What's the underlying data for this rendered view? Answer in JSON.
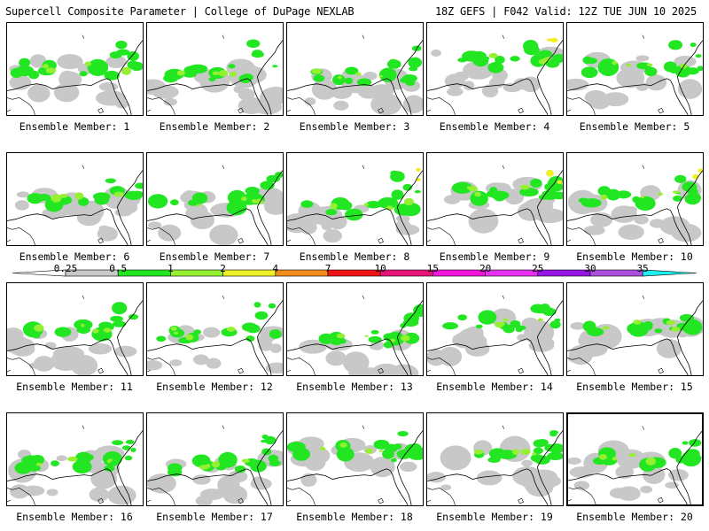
{
  "header": {
    "title_left": "Supercell Composite Parameter | College of DuPage NEXLAB",
    "title_right": "18Z GEFS | F042 Valid: 12Z TUE JUN 10 2025"
  },
  "member_prefix": "Ensemble Member: ",
  "members": [
    {
      "id": 1,
      "label": "Ensemble Member: 1"
    },
    {
      "id": 2,
      "label": "Ensemble Member: 2"
    },
    {
      "id": 3,
      "label": "Ensemble Member: 3"
    },
    {
      "id": 4,
      "label": "Ensemble Member: 4"
    },
    {
      "id": 5,
      "label": "Ensemble Member: 5"
    },
    {
      "id": 6,
      "label": "Ensemble Member: 6"
    },
    {
      "id": 7,
      "label": "Ensemble Member: 7"
    },
    {
      "id": 8,
      "label": "Ensemble Member: 8"
    },
    {
      "id": 9,
      "label": "Ensemble Member: 9"
    },
    {
      "id": 10,
      "label": "Ensemble Member: 10"
    },
    {
      "id": 11,
      "label": "Ensemble Member: 11"
    },
    {
      "id": 12,
      "label": "Ensemble Member: 12"
    },
    {
      "id": 13,
      "label": "Ensemble Member: 13"
    },
    {
      "id": 14,
      "label": "Ensemble Member: 14"
    },
    {
      "id": 15,
      "label": "Ensemble Member: 15"
    },
    {
      "id": 16,
      "label": "Ensemble Member: 16"
    },
    {
      "id": 17,
      "label": "Ensemble Member: 17"
    },
    {
      "id": 18,
      "label": "Ensemble Member: 18"
    },
    {
      "id": 19,
      "label": "Ensemble Member: 19"
    },
    {
      "id": 20,
      "label": "Ensemble Member: 20",
      "selected": true
    }
  ],
  "colorbar": {
    "ticks": [
      "0.25",
      "0.5",
      "1",
      "2",
      "4",
      "7",
      "10",
      "15",
      "20",
      "25",
      "30",
      "35"
    ],
    "colors": [
      "#ffffff",
      "#c8c8c8",
      "#22e622",
      "#96f032",
      "#f0f028",
      "#f08c1e",
      "#f01414",
      "#e61478",
      "#f014dc",
      "#e632f0",
      "#9614e6",
      "#aa50dc",
      "#1ef0f0"
    ]
  },
  "map_colors": {
    "level_0_5": "#c8c8c8",
    "level_1": "#22e622",
    "level_2": "#96f032",
    "level_4": "#f0f028"
  }
}
